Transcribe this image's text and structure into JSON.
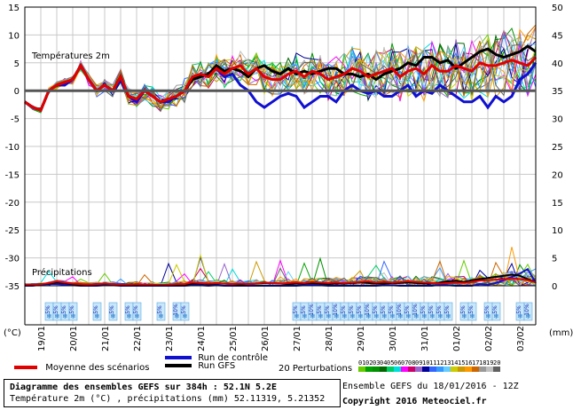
{
  "chart_data": {
    "type": "line",
    "title": "Diagramme des ensembles GEFS sur 384h : 52.1N 5.2E",
    "subtitle": "Température 2m (°C) , précipitations (mm) 52.11319, 5.21352",
    "run_label": "Ensemble GEFS du 18/01/2016 - 12Z",
    "copyright": "Copyright 2016 Meteociel.fr",
    "temp_label": "Températures 2m",
    "precip_label": "Précipitations",
    "left_unit": "(°C)",
    "right_unit": "(mm)",
    "left_ticks": [
      "15",
      "10",
      "5",
      "0",
      "-5",
      "-10",
      "-15",
      "-20",
      "-25",
      "-30",
      "-35"
    ],
    "right_ticks": [
      "50",
      "45",
      "40",
      "35",
      "30",
      "25",
      "20",
      "15",
      "10",
      "5",
      "0"
    ],
    "ylim_temp": [
      -35,
      15
    ],
    "dates": [
      "19/01",
      "20/01",
      "21/01",
      "22/01",
      "23/01",
      "24/01",
      "25/01",
      "26/01",
      "27/01",
      "28/01",
      "29/01",
      "30/01",
      "31/01",
      "01/02",
      "02/02",
      "03/02"
    ],
    "x_hours_step": 6,
    "series": [
      {
        "name": "Moyenne des scénarios",
        "color": "#e00000",
        "temp": [
          -2,
          -3,
          -3.5,
          0,
          1,
          1.5,
          2,
          4.5,
          2,
          0,
          1,
          0,
          2.5,
          -1,
          -1.5,
          0,
          -1,
          -2,
          -1.5,
          -1,
          0,
          2.5,
          3,
          2.5,
          4,
          3,
          4,
          4.5,
          3,
          4,
          2.5,
          2,
          2,
          3,
          3.5,
          2.5,
          3.5,
          3,
          2,
          2.5,
          3,
          4,
          3.5,
          2.5,
          3,
          3.5,
          4,
          2.5,
          3.5,
          4,
          3,
          4.5,
          3.5,
          3.5,
          4.5,
          4,
          3.5,
          5,
          4.5,
          4.5,
          5,
          5.5,
          5,
          4.5,
          6
        ],
        "precip": [
          0.2,
          0.2,
          0.3,
          0.5,
          0.8,
          0.6,
          0.4,
          0.3,
          0.2,
          0.3,
          0.4,
          0.3,
          0.2,
          0.2,
          0.3,
          0.2,
          0.2,
          0.1,
          0.2,
          0.3,
          0.3,
          0.6,
          0.5,
          0.4,
          0.5,
          0.4,
          0.3,
          0.4,
          0.3,
          0.4,
          0.6,
          0.5,
          0.4,
          0.5,
          0.6,
          0.5,
          0.7,
          0.6,
          0.5,
          0.6,
          0.5,
          0.6,
          0.7,
          0.8,
          0.6,
          0.7,
          0.6,
          0.7,
          0.8,
          0.7,
          0.6,
          0.5,
          0.4,
          0.5,
          0.6,
          0.5,
          0.7,
          0.9,
          1.0,
          1.1,
          1.2,
          1.3,
          1.2,
          1.0,
          0.6
        ]
      },
      {
        "name": "Run de contrôle",
        "color": "#1010d0",
        "temp": [
          -2,
          -3,
          -3.5,
          0,
          1,
          1,
          2,
          4.5,
          2,
          0,
          1,
          0,
          2,
          -1,
          -2,
          0,
          -1,
          -2,
          -2,
          -1,
          0,
          2,
          2.5,
          3,
          4,
          2.5,
          3,
          1,
          0,
          -2,
          -3,
          -2,
          -1,
          -0.5,
          -1,
          -3,
          -2,
          -1,
          -1,
          -2,
          0,
          1,
          0,
          -0.5,
          0,
          -1,
          -1,
          0,
          1,
          -1,
          0,
          -0.5,
          1,
          0,
          -1,
          -2,
          -2,
          -1,
          -3,
          -1,
          -2,
          -1,
          2,
          3,
          5
        ],
        "precip": [
          0,
          0,
          0.2,
          0.3,
          0.3,
          0.2,
          0.1,
          0,
          0,
          0,
          0.1,
          0.1,
          0,
          0,
          0,
          0,
          0,
          0,
          0,
          0,
          0,
          0.1,
          0.1,
          0,
          0.1,
          0,
          0,
          0,
          0,
          0,
          0,
          0,
          0,
          0,
          0,
          0.1,
          0.2,
          0.1,
          0,
          0,
          0,
          0,
          0,
          0,
          0,
          0.1,
          0.1,
          0,
          0,
          0,
          0,
          0,
          0.2,
          0.1,
          0,
          0,
          0,
          0.3,
          0.2,
          0.5,
          1.0,
          1.6,
          2.2,
          3.0,
          0.5
        ]
      },
      {
        "name": "Run GFS",
        "color": "#000000",
        "temp": [
          -2,
          -3,
          -3.5,
          0,
          1,
          1.5,
          2,
          4.5,
          2,
          0,
          1,
          0,
          2.5,
          -1,
          -1.5,
          0,
          -1,
          -2,
          -1.5,
          -1,
          0,
          2,
          2.5,
          3,
          4.5,
          3.5,
          4,
          3.5,
          2.5,
          4,
          4.5,
          3.5,
          3,
          4,
          3,
          3.5,
          3,
          3.5,
          4,
          4,
          3,
          3,
          2.5,
          3,
          2,
          3,
          3.5,
          4,
          5,
          4.5,
          6,
          6,
          5,
          5.5,
          4,
          5,
          6,
          7,
          7.5,
          6.5,
          6,
          6.5,
          7,
          8,
          7
        ],
        "precip": [
          0.2,
          0.2,
          0.3,
          0.4,
          0.6,
          0.5,
          0.3,
          0.2,
          0.2,
          0.3,
          0.3,
          0.3,
          0.2,
          0.2,
          0.2,
          0.1,
          0.1,
          0.1,
          0.1,
          0.2,
          0.2,
          0.4,
          0.4,
          0.3,
          0.4,
          0.4,
          0.3,
          0.2,
          0.3,
          0.4,
          0.5,
          0.5,
          0.4,
          0.3,
          0.4,
          0.4,
          0.5,
          0.4,
          0.3,
          0.4,
          0.4,
          0.5,
          0.6,
          0.5,
          0.4,
          0.4,
          0.5,
          0.5,
          0.6,
          0.5,
          0.4,
          0.4,
          0.6,
          0.8,
          0.9,
          0.7,
          1.0,
          1.2,
          1.4,
          1.6,
          1.8,
          2.0,
          1.8,
          1.2,
          0.6
        ]
      }
    ],
    "perturbations": {
      "label": "20 Perturbations",
      "members": [
        "01",
        "02",
        "03",
        "04",
        "05",
        "06",
        "07",
        "08",
        "09",
        "10",
        "11",
        "12",
        "13",
        "14",
        "15",
        "16",
        "17",
        "18",
        "19",
        "20"
      ],
      "colors": [
        "#66cc00",
        "#00a000",
        "#009000",
        "#006600",
        "#00cc66",
        "#00dddd",
        "#ff00ff",
        "#cc0066",
        "#9966cc",
        "#000099",
        "#3366ff",
        "#3399ff",
        "#66ccff",
        "#cccc00",
        "#cc9900",
        "#ff9900",
        "#cc6600",
        "#999999",
        "#c0c0c0",
        "#606060"
      ]
    },
    "snow_flags": [
      {
        "hour": 18,
        "pct": "5%"
      },
      {
        "hour": 24,
        "pct": "5%"
      },
      {
        "hour": 30,
        "pct": "5%"
      },
      {
        "hour": 36,
        "pct": "5%"
      },
      {
        "hour": 54,
        "pct": "5%"
      },
      {
        "hour": 66,
        "pct": "5%"
      },
      {
        "hour": 78,
        "pct": "5%"
      },
      {
        "hour": 84,
        "pct": "5%"
      },
      {
        "hour": 102,
        "pct": "5%"
      },
      {
        "hour": 114,
        "pct": "10%"
      },
      {
        "hour": 120,
        "pct": "5%"
      },
      {
        "hour": 204,
        "pct": "5%"
      },
      {
        "hour": 210,
        "pct": "5%"
      },
      {
        "hour": 216,
        "pct": "10%"
      },
      {
        "hour": 222,
        "pct": "5%"
      },
      {
        "hour": 228,
        "pct": "5%"
      },
      {
        "hour": 234,
        "pct": "10%"
      },
      {
        "hour": 240,
        "pct": "5%"
      },
      {
        "hour": 246,
        "pct": "5%"
      },
      {
        "hour": 252,
        "pct": "5%"
      },
      {
        "hour": 258,
        "pct": "10%"
      },
      {
        "hour": 264,
        "pct": "5%"
      },
      {
        "hour": 270,
        "pct": "5%"
      },
      {
        "hour": 276,
        "pct": "5%"
      },
      {
        "hour": 282,
        "pct": "10%"
      },
      {
        "hour": 288,
        "pct": "5%"
      },
      {
        "hour": 294,
        "pct": "10%"
      },
      {
        "hour": 300,
        "pct": "5%"
      },
      {
        "hour": 306,
        "pct": "5%"
      },
      {
        "hour": 312,
        "pct": "5%"
      },
      {
        "hour": 318,
        "pct": "5%"
      },
      {
        "hour": 330,
        "pct": "5%"
      },
      {
        "hour": 336,
        "pct": "5%"
      },
      {
        "hour": 348,
        "pct": "5%"
      },
      {
        "hour": 354,
        "pct": "5%"
      },
      {
        "hour": 372,
        "pct": "5%"
      },
      {
        "hour": 378,
        "pct": "10%"
      }
    ],
    "zero_line": 0,
    "grid": true
  }
}
